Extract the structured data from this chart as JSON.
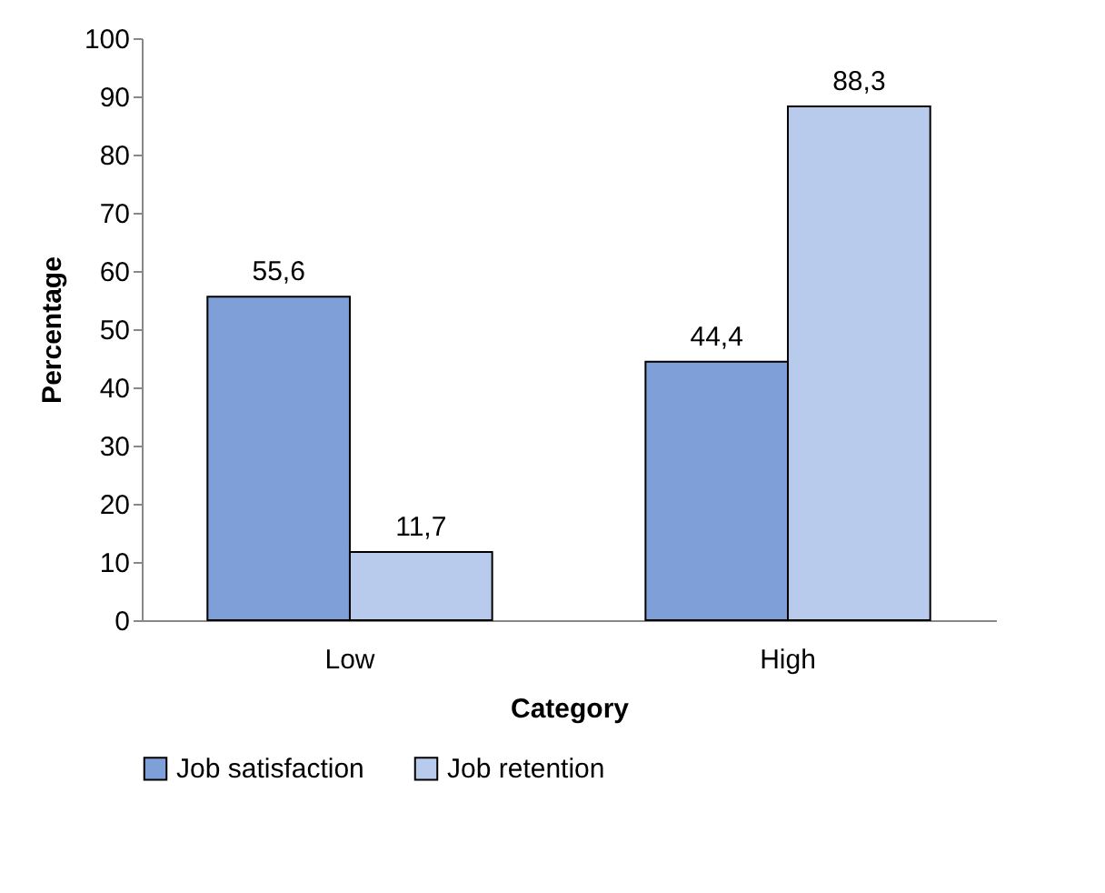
{
  "chart_data": {
    "type": "bar",
    "xlabel": "Category",
    "ylabel": "Percentage",
    "categories": [
      "Low",
      "High"
    ],
    "series": [
      {
        "name": "Job satisfaction",
        "color": "#7f9fd8",
        "values": [
          55.6,
          44.4
        ],
        "value_labels": [
          "55,6",
          "44,4"
        ]
      },
      {
        "name": "Job retention",
        "color": "#b9cbec",
        "values": [
          11.7,
          88.3
        ],
        "value_labels": [
          "11,7",
          "88,3"
        ]
      }
    ],
    "ylim": [
      0,
      100
    ],
    "yticks": [
      0,
      10,
      20,
      30,
      40,
      50,
      60,
      70,
      80,
      90,
      100
    ],
    "grid": false,
    "legend": "bottom"
  }
}
